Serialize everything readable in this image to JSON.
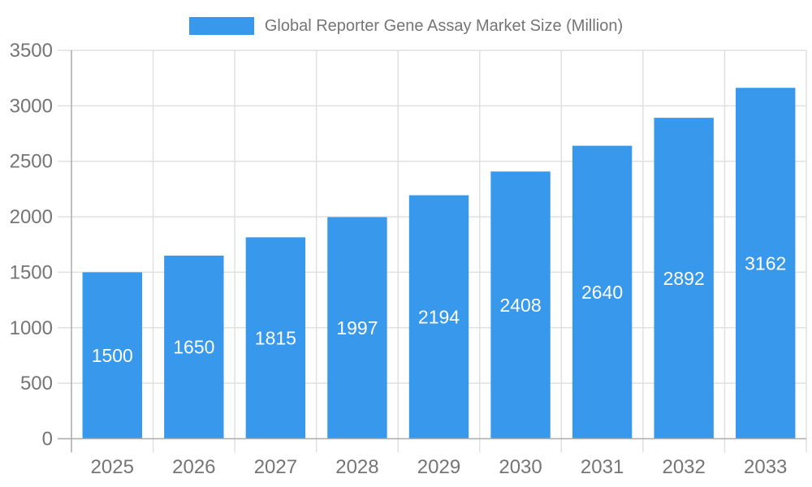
{
  "chart_data": {
    "type": "bar",
    "title": "Global Reporter Gene Assay Market Size (Million)",
    "legend": {
      "position": "top",
      "entries": [
        "Global Reporter Gene Assay Market Size (Million)"
      ]
    },
    "categories": [
      "2025",
      "2026",
      "2027",
      "2028",
      "2029",
      "2030",
      "2031",
      "2032",
      "2033"
    ],
    "series": [
      {
        "name": "Global Reporter Gene Assay Market Size (Million)",
        "values": [
          1500,
          1650,
          1815,
          1997,
          2194,
          2408,
          2640,
          2892,
          3162
        ]
      }
    ],
    "value_labels": [
      "1500",
      "1650",
      "1815",
      "1997",
      "2194",
      "2408",
      "2640",
      "2892",
      "3162"
    ],
    "xlabel": "",
    "ylabel": "",
    "ylim": [
      0,
      3500
    ],
    "yticks": [
      0,
      500,
      1000,
      1500,
      2000,
      2500,
      3000,
      3500
    ],
    "grid": true,
    "colors": {
      "bar": "#3899EC",
      "bar_label_text": "#FFFFFF",
      "axis_text": "#757575",
      "legend_text": "#757575",
      "grid_line": "#E0E0E0",
      "axis_line": "#ACACAC",
      "background": "#FFFFFF"
    }
  }
}
